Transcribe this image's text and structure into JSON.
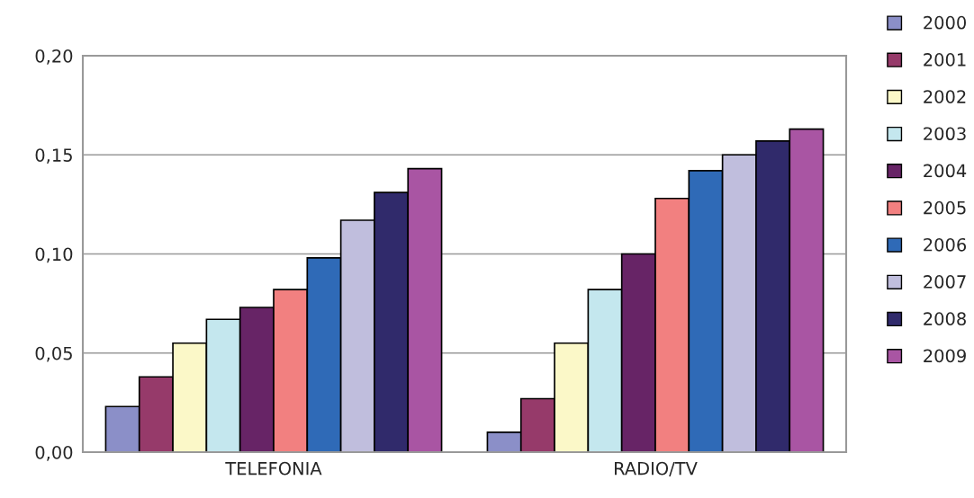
{
  "chart_data": {
    "type": "bar",
    "categories": [
      "TELEFONIA",
      "RADIO/TV"
    ],
    "series": [
      {
        "name": "2000",
        "color": "#8b8fc8",
        "values": [
          0.023,
          0.01
        ]
      },
      {
        "name": "2001",
        "color": "#963a6a",
        "values": [
          0.038,
          0.027
        ]
      },
      {
        "name": "2002",
        "color": "#fbf8c8",
        "values": [
          0.055,
          0.055
        ]
      },
      {
        "name": "2003",
        "color": "#c4e7ee",
        "values": [
          0.067,
          0.082
        ]
      },
      {
        "name": "2004",
        "color": "#672466",
        "values": [
          0.073,
          0.1
        ]
      },
      {
        "name": "2005",
        "color": "#f28080",
        "values": [
          0.082,
          0.128
        ]
      },
      {
        "name": "2006",
        "color": "#2f6ab7",
        "values": [
          0.098,
          0.142
        ]
      },
      {
        "name": "2007",
        "color": "#c0bedd",
        "values": [
          0.117,
          0.15
        ]
      },
      {
        "name": "2008",
        "color": "#302a6b",
        "values": [
          0.131,
          0.157
        ]
      },
      {
        "name": "2009",
        "color": "#a955a3",
        "values": [
          0.143,
          0.163
        ]
      }
    ],
    "ylim": [
      0,
      0.2
    ],
    "yticks": [
      {
        "value": 0,
        "label": "0,00"
      },
      {
        "value": 0.05,
        "label": "0,05"
      },
      {
        "value": 0.1,
        "label": "0,10"
      },
      {
        "value": 0.15,
        "label": "0,15"
      },
      {
        "value": 0.2,
        "label": "0,20"
      }
    ],
    "grid": "y",
    "legend": "right"
  }
}
